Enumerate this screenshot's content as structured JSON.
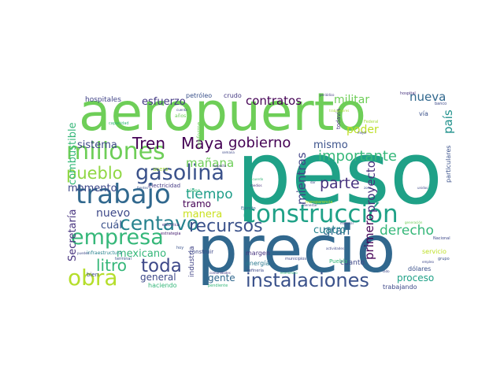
{
  "words": [
    {
      "text": "peso",
      "color": "#1fa187"
    },
    {
      "text": "precio",
      "color": "#31688e"
    },
    {
      "text": "aeropuerto",
      "color": "#6ece58"
    },
    {
      "text": "construcción",
      "color": "#1fa187"
    },
    {
      "text": "trabajo",
      "color": "#31688e"
    },
    {
      "text": "millones",
      "color": "#6ece58"
    },
    {
      "text": "gasolina",
      "color": "#3b528b"
    },
    {
      "text": "instalaciones",
      "color": "#3b528b"
    },
    {
      "text": "empresa",
      "color": "#35b779"
    },
    {
      "text": "obra",
      "color": "#b5de2b"
    },
    {
      "text": "centavo",
      "color": "#26828e"
    },
    {
      "text": "recursos",
      "color": "#3b528b"
    },
    {
      "text": "toda",
      "color": "#3e4989"
    },
    {
      "text": "pueblo",
      "color": "#90d743"
    },
    {
      "text": "Tren",
      "color": "#440154"
    },
    {
      "text": "Maya",
      "color": "#440154"
    },
    {
      "text": "gobierno",
      "color": "#440154"
    },
    {
      "text": "importante",
      "color": "#35b779"
    },
    {
      "text": "litro",
      "color": "#35b779"
    },
    {
      "text": "parte",
      "color": "#46327e"
    },
    {
      "text": "contratos",
      "color": "#440154"
    },
    {
      "text": "nueva",
      "color": "#31688e"
    },
    {
      "text": "tiempo",
      "color": "#1f9e89"
    },
    {
      "text": "derecho",
      "color": "#35b779"
    },
    {
      "text": "gran",
      "color": "#31688e"
    },
    {
      "text": "mañana",
      "color": "#6ece58"
    },
    {
      "text": "mientras",
      "color": "#414487"
    },
    {
      "text": "proyecto",
      "color": "#46327e"
    },
    {
      "text": "primero",
      "color": "#440154"
    },
    {
      "text": "país",
      "color": "#21918c"
    },
    {
      "text": "militar",
      "color": "#6ece58"
    },
    {
      "text": "poder",
      "color": "#bddf26"
    },
    {
      "text": "mismo",
      "color": "#3b528b"
    },
    {
      "text": "esfuerzo",
      "color": "#443983"
    },
    {
      "text": "sistema",
      "color": "#3e4989"
    },
    {
      "text": "momento",
      "color": "#3e4989"
    },
    {
      "text": "nuevo",
      "color": "#3e4989"
    },
    {
      "text": "cuál",
      "color": "#3b528b"
    },
    {
      "text": "manera",
      "color": "#cae11f"
    },
    {
      "text": "cuatro",
      "color": "#26828e"
    },
    {
      "text": "combustible",
      "color": "#35b779"
    },
    {
      "text": "Secretaría",
      "color": "#46327e"
    },
    {
      "text": "mexicano",
      "color": "#35b779"
    },
    {
      "text": "general",
      "color": "#3e4989"
    },
    {
      "text": "gente",
      "color": "#31688e"
    },
    {
      "text": "proceso",
      "color": "#1fa187"
    },
    {
      "text": "tramo",
      "color": "#440154"
    },
    {
      "text": "hospitales",
      "color": "#414487"
    },
    {
      "text": "petróleo",
      "color": "#3b528b"
    },
    {
      "text": "crudo",
      "color": "#443983"
    },
    {
      "text": "cuanto",
      "color": "#3e4989"
    },
    {
      "text": "industria",
      "color": "#414487"
    },
    {
      "text": "energía",
      "color": "#2a788e"
    },
    {
      "text": "margen",
      "color": "#46327e"
    },
    {
      "text": "servicio",
      "color": "#bddf26"
    },
    {
      "text": "dólares",
      "color": "#3b528b"
    },
    {
      "text": "trabajando",
      "color": "#3e4989"
    },
    {
      "text": "haciendo",
      "color": "#35b779"
    },
    {
      "text": "Puebla",
      "color": "#35b779"
    },
    {
      "text": "todavía",
      "color": "#46327e"
    },
    {
      "text": "vía",
      "color": "#3b528b"
    },
    {
      "text": "Electricidad",
      "color": "#443983"
    },
    {
      "text": "construir",
      "color": "#3e4989"
    },
    {
      "text": "particulares",
      "color": "#3b528b"
    },
    {
      "text": "conforme",
      "color": "#6ece58"
    },
    {
      "text": "acero",
      "color": "#a5db36"
    },
    {
      "text": "video",
      "color": "#35b779"
    },
    {
      "text": "Ejército",
      "color": "#31688e"
    },
    {
      "text": "bien",
      "color": "#3e4989"
    },
    {
      "text": "hoy",
      "color": "#3b528b"
    },
    {
      "text": "estrategia",
      "color": "#482173"
    },
    {
      "text": "infraestructura",
      "color": "#26828e"
    },
    {
      "text": "terminal",
      "color": "#3b528b"
    },
    {
      "text": "eléctrica",
      "color": "#46327e"
    },
    {
      "text": "refinería",
      "color": "#3e4989"
    },
    {
      "text": "comunidades",
      "color": "#443983"
    },
    {
      "text": "pendiente",
      "color": "#35b779"
    },
    {
      "text": "municipios",
      "color": "#3e4989"
    },
    {
      "text": "económico",
      "color": "#35b779"
    },
    {
      "text": "frentes",
      "color": "#3b528b"
    },
    {
      "text": "semana",
      "color": "#3e4989"
    },
    {
      "text": "respecto",
      "color": "#443983"
    },
    {
      "text": "capacidad",
      "color": "#35b779"
    },
    {
      "text": "cuenta",
      "color": "#3e4989"
    },
    {
      "text": "años",
      "color": "#6ece58"
    },
    {
      "text": "mejor",
      "color": "#3e4989"
    },
    {
      "text": "periódico",
      "color": "#443983"
    },
    {
      "text": "hospital",
      "color": "#46327e"
    },
    {
      "text": "banco",
      "color": "#3e4989"
    },
    {
      "text": "Nacional",
      "color": "#3e4989"
    },
    {
      "text": "grupo",
      "color": "#3b528b"
    },
    {
      "text": "empleo",
      "color": "#3e4989"
    },
    {
      "text": "lado",
      "color": "#3e4989"
    },
    {
      "text": "dar",
      "color": "#3e4989"
    },
    {
      "text": "zona",
      "color": "#3b528b"
    },
    {
      "text": "medios",
      "color": "#46327e"
    },
    {
      "text": "acuerdo",
      "color": "#35b779"
    },
    {
      "text": "unidos",
      "color": "#3e4989"
    },
    {
      "text": "generación",
      "color": "#6ece58"
    },
    {
      "text": "material",
      "color": "#3e4989"
    },
    {
      "text": "actividades",
      "color": "#3e4989"
    },
    {
      "text": "Bienestar",
      "color": "#3e4989"
    },
    {
      "text": "pueden",
      "color": "#3e4989"
    },
    {
      "text": "trabajadores",
      "color": "#a5db36"
    },
    {
      "text": "transparencia",
      "color": "#bddf26"
    },
    {
      "text": "Federal",
      "color": "#a5db36"
    }
  ]
}
